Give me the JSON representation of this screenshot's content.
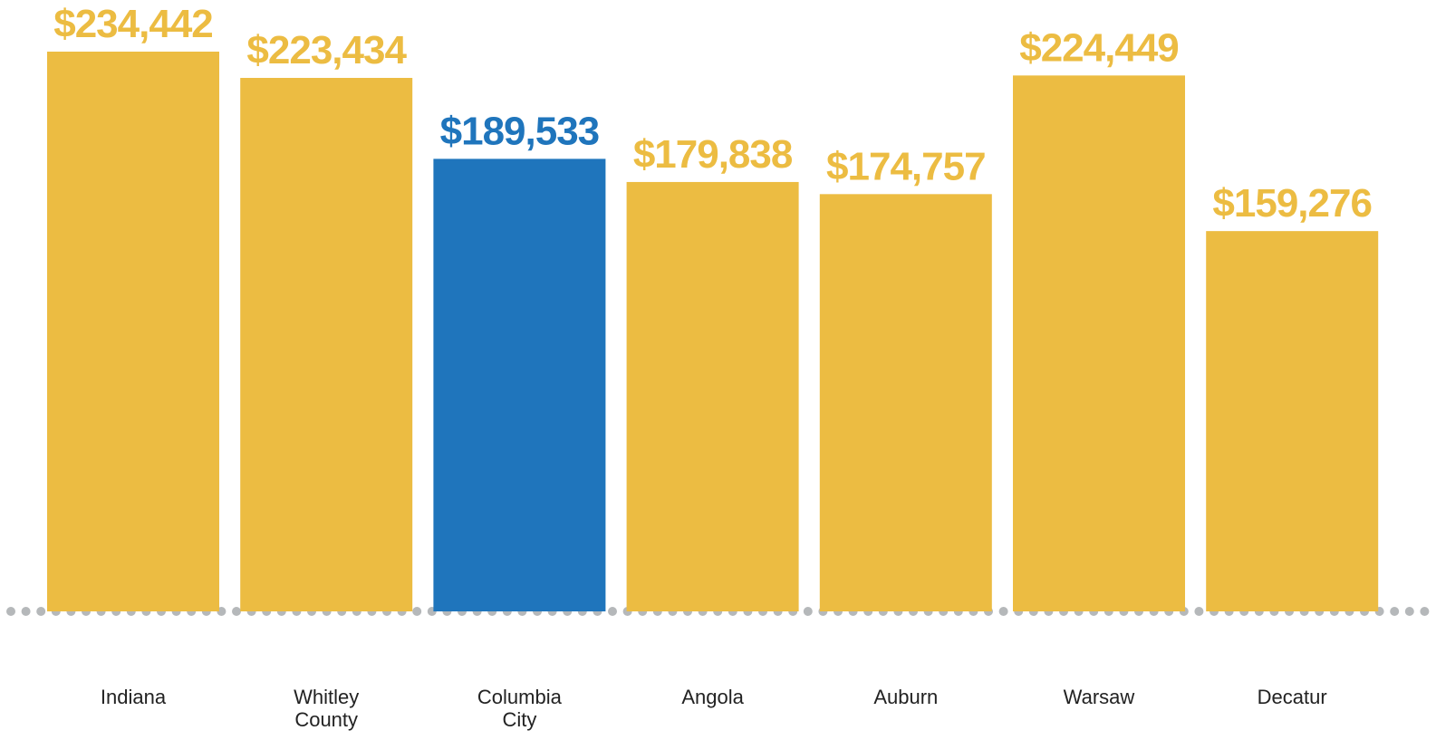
{
  "chart_data": {
    "type": "bar",
    "categories": [
      "Indiana",
      "Whitley County",
      "Columbia City",
      "Angola",
      "Auburn",
      "Warsaw",
      "Decatur"
    ],
    "values": [
      234442,
      223434,
      189533,
      179838,
      174757,
      224449,
      159276
    ],
    "value_labels": [
      "$234,442",
      "$223,434",
      "$189,533",
      "$179,838",
      "$174,757",
      "$224,449",
      "$159,276"
    ],
    "colors": [
      "#ECBC42",
      "#ECBC42",
      "#1F75BC",
      "#ECBC42",
      "#ECBC42",
      "#ECBC42",
      "#ECBC42"
    ]
  }
}
